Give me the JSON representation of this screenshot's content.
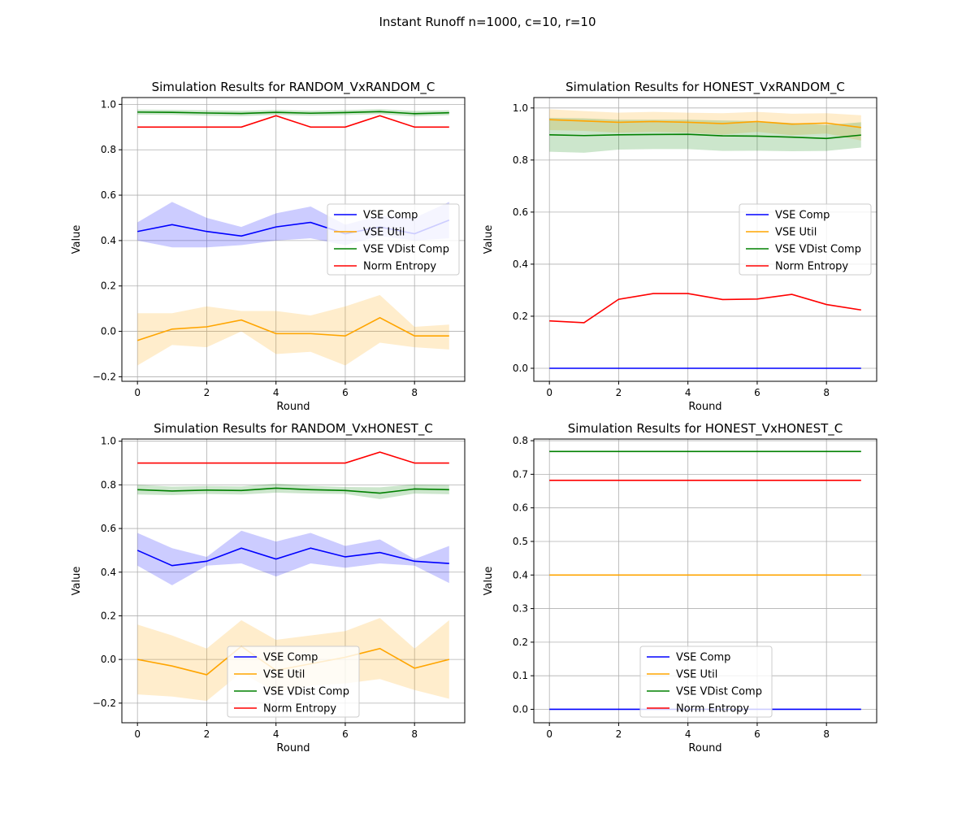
{
  "figure": {
    "suptitle": "Instant Runoff n=1000, c=10, r=10"
  },
  "legend_entries": [
    {
      "key": "comp",
      "label": "VSE Comp",
      "color": "#0000ff"
    },
    {
      "key": "util",
      "label": "VSE Util",
      "color": "#ffa500"
    },
    {
      "key": "vdist",
      "label": "VSE VDist Comp",
      "color": "#008000"
    },
    {
      "key": "entropy",
      "label": "Norm Entropy",
      "color": "#ff0000"
    }
  ],
  "chart_data": [
    {
      "type": "line",
      "title": "Simulation Results for RANDOM_VxRANDOM_C",
      "xlabel": "Round",
      "ylabel": "Value",
      "xlim": [
        -0.45,
        9.45
      ],
      "ylim": [
        -0.22,
        1.03
      ],
      "xticks": [
        0,
        2,
        4,
        6,
        8
      ],
      "yticks": [
        -0.2,
        0.0,
        0.2,
        0.4,
        0.6,
        0.8,
        1.0
      ],
      "ytick_labels": [
        "−0.2",
        "0.0",
        "0.2",
        "0.4",
        "0.6",
        "0.8",
        "1.0"
      ],
      "grid": true,
      "legend_position": "center-right",
      "x": [
        0,
        1,
        2,
        3,
        4,
        5,
        6,
        7,
        8,
        9
      ],
      "series": [
        {
          "key": "comp",
          "name": "VSE Comp",
          "color": "#0000ff",
          "values": [
            0.44,
            0.47,
            0.44,
            0.42,
            0.46,
            0.48,
            0.43,
            0.46,
            0.43,
            0.49
          ],
          "lower": [
            0.4,
            0.37,
            0.37,
            0.38,
            0.4,
            0.41,
            0.38,
            0.42,
            0.4,
            0.41
          ],
          "upper": [
            0.48,
            0.57,
            0.5,
            0.46,
            0.52,
            0.55,
            0.47,
            0.51,
            0.5,
            0.57
          ]
        },
        {
          "key": "util",
          "name": "VSE Util",
          "color": "#ffa500",
          "values": [
            -0.04,
            0.01,
            0.02,
            0.05,
            -0.01,
            -0.01,
            -0.02,
            0.06,
            -0.02,
            -0.02
          ],
          "lower": [
            -0.15,
            -0.06,
            -0.07,
            0.0,
            -0.1,
            -0.09,
            -0.15,
            -0.05,
            -0.07,
            -0.08
          ],
          "upper": [
            0.08,
            0.08,
            0.11,
            0.09,
            0.09,
            0.07,
            0.11,
            0.16,
            0.02,
            0.03
          ]
        },
        {
          "key": "vdist",
          "name": "VSE VDist Comp",
          "color": "#008000",
          "values": [
            0.966,
            0.965,
            0.962,
            0.96,
            0.965,
            0.961,
            0.964,
            0.968,
            0.959,
            0.963
          ],
          "lower": [
            0.955,
            0.954,
            0.95,
            0.948,
            0.954,
            0.95,
            0.953,
            0.957,
            0.947,
            0.952
          ],
          "upper": [
            0.977,
            0.976,
            0.974,
            0.972,
            0.976,
            0.972,
            0.975,
            0.979,
            0.971,
            0.974
          ]
        },
        {
          "key": "entropy",
          "name": "Norm Entropy",
          "color": "#ff0000",
          "values": [
            0.9,
            0.9,
            0.9,
            0.9,
            0.95,
            0.9,
            0.9,
            0.95,
            0.9,
            0.9
          ]
        }
      ]
    },
    {
      "type": "line",
      "title": "Simulation Results for HONEST_VxRANDOM_C",
      "xlabel": "Round",
      "ylabel": "Value",
      "xlim": [
        -0.45,
        9.45
      ],
      "ylim": [
        -0.05,
        1.04
      ],
      "xticks": [
        0,
        2,
        4,
        6,
        8
      ],
      "yticks": [
        0.0,
        0.2,
        0.4,
        0.6,
        0.8,
        1.0
      ],
      "ytick_labels": [
        "0.0",
        "0.2",
        "0.4",
        "0.6",
        "0.8",
        "1.0"
      ],
      "grid": true,
      "legend_position": "center-right",
      "x": [
        0,
        1,
        2,
        3,
        4,
        5,
        6,
        7,
        8,
        9
      ],
      "series": [
        {
          "key": "comp",
          "name": "VSE Comp",
          "color": "#0000ff",
          "values": [
            0,
            0,
            0,
            0,
            0,
            0,
            0,
            0,
            0,
            0
          ]
        },
        {
          "key": "util",
          "name": "VSE Util",
          "color": "#ffa500",
          "values": [
            0.955,
            0.95,
            0.945,
            0.948,
            0.945,
            0.94,
            0.948,
            0.938,
            0.942,
            0.925
          ],
          "lower": [
            0.915,
            0.912,
            0.905,
            0.908,
            0.905,
            0.898,
            0.908,
            0.895,
            0.902,
            0.875
          ],
          "upper": [
            0.995,
            0.988,
            0.982,
            0.985,
            0.982,
            0.98,
            0.985,
            0.978,
            0.98,
            0.972
          ]
        },
        {
          "key": "vdist",
          "name": "VSE VDist Comp",
          "color": "#008000",
          "values": [
            0.897,
            0.894,
            0.897,
            0.898,
            0.899,
            0.893,
            0.892,
            0.888,
            0.883,
            0.896
          ],
          "lower": [
            0.832,
            0.828,
            0.84,
            0.842,
            0.842,
            0.835,
            0.836,
            0.834,
            0.835,
            0.848
          ],
          "upper": [
            0.962,
            0.96,
            0.955,
            0.955,
            0.955,
            0.952,
            0.95,
            0.942,
            0.935,
            0.945
          ]
        },
        {
          "key": "entropy",
          "name": "Norm Entropy",
          "color": "#ff0000",
          "values": [
            0.182,
            0.175,
            0.265,
            0.287,
            0.287,
            0.264,
            0.266,
            0.284,
            0.245,
            0.224
          ]
        }
      ]
    },
    {
      "type": "line",
      "title": "Simulation Results for RANDOM_VxHONEST_C",
      "xlabel": "Round",
      "ylabel": "Value",
      "xlim": [
        -0.45,
        9.45
      ],
      "ylim": [
        -0.29,
        1.01
      ],
      "xticks": [
        0,
        2,
        4,
        6,
        8
      ],
      "yticks": [
        -0.2,
        0.0,
        0.2,
        0.4,
        0.6,
        0.8,
        1.0
      ],
      "ytick_labels": [
        "−0.2",
        "0.0",
        "0.2",
        "0.4",
        "0.6",
        "0.8",
        "1.0"
      ],
      "grid": true,
      "legend_position": "lower-center",
      "x": [
        0,
        1,
        2,
        3,
        4,
        5,
        6,
        7,
        8,
        9
      ],
      "series": [
        {
          "key": "comp",
          "name": "VSE Comp",
          "color": "#0000ff",
          "values": [
            0.5,
            0.43,
            0.45,
            0.51,
            0.46,
            0.51,
            0.47,
            0.49,
            0.45,
            0.44
          ],
          "lower": [
            0.43,
            0.34,
            0.43,
            0.44,
            0.38,
            0.44,
            0.42,
            0.44,
            0.43,
            0.35
          ],
          "upper": [
            0.58,
            0.51,
            0.47,
            0.59,
            0.54,
            0.58,
            0.52,
            0.55,
            0.46,
            0.52
          ]
        },
        {
          "key": "util",
          "name": "VSE Util",
          "color": "#ffa500",
          "values": [
            0.0,
            -0.03,
            -0.07,
            0.06,
            -0.05,
            -0.02,
            0.01,
            0.05,
            -0.04,
            0.0
          ],
          "lower": [
            -0.16,
            -0.17,
            -0.19,
            -0.06,
            -0.15,
            -0.12,
            -0.11,
            -0.09,
            -0.14,
            -0.18
          ],
          "upper": [
            0.16,
            0.11,
            0.05,
            0.18,
            0.09,
            0.11,
            0.13,
            0.19,
            0.05,
            0.18
          ]
        },
        {
          "key": "vdist",
          "name": "VSE VDist Comp",
          "color": "#008000",
          "values": [
            0.778,
            0.772,
            0.776,
            0.774,
            0.785,
            0.778,
            0.774,
            0.762,
            0.781,
            0.778
          ],
          "lower": [
            0.756,
            0.753,
            0.758,
            0.756,
            0.764,
            0.76,
            0.758,
            0.735,
            0.76,
            0.757
          ],
          "upper": [
            0.8,
            0.792,
            0.795,
            0.793,
            0.806,
            0.796,
            0.79,
            0.789,
            0.802,
            0.799
          ]
        },
        {
          "key": "entropy",
          "name": "Norm Entropy",
          "color": "#ff0000",
          "values": [
            0.9,
            0.9,
            0.9,
            0.9,
            0.9,
            0.9,
            0.9,
            0.95,
            0.9,
            0.9
          ]
        }
      ]
    },
    {
      "type": "line",
      "title": "Simulation Results for HONEST_VxHONEST_C",
      "xlabel": "Round",
      "ylabel": "Value",
      "xlim": [
        -0.45,
        9.45
      ],
      "ylim": [
        -0.04,
        0.805
      ],
      "xticks": [
        0,
        2,
        4,
        6,
        8
      ],
      "yticks": [
        0.0,
        0.1,
        0.2,
        0.3,
        0.4,
        0.5,
        0.6,
        0.7,
        0.8
      ],
      "ytick_labels": [
        "0.0",
        "0.1",
        "0.2",
        "0.3",
        "0.4",
        "0.5",
        "0.6",
        "0.7",
        "0.8"
      ],
      "grid": true,
      "legend_position": "lower-center",
      "x": [
        0,
        1,
        2,
        3,
        4,
        5,
        6,
        7,
        8,
        9
      ],
      "series": [
        {
          "key": "comp",
          "name": "VSE Comp",
          "color": "#0000ff",
          "values": [
            0,
            0,
            0,
            0,
            0,
            0,
            0,
            0,
            0,
            0
          ]
        },
        {
          "key": "util",
          "name": "VSE Util",
          "color": "#ffa500",
          "values": [
            0.4,
            0.4,
            0.4,
            0.4,
            0.4,
            0.4,
            0.4,
            0.4,
            0.4,
            0.4
          ]
        },
        {
          "key": "vdist",
          "name": "VSE VDist Comp",
          "color": "#008000",
          "values": [
            0.768,
            0.768,
            0.768,
            0.768,
            0.768,
            0.768,
            0.768,
            0.768,
            0.768,
            0.768
          ]
        },
        {
          "key": "entropy",
          "name": "Norm Entropy",
          "color": "#ff0000",
          "values": [
            0.682,
            0.682,
            0.682,
            0.682,
            0.682,
            0.682,
            0.682,
            0.682,
            0.682,
            0.682
          ]
        }
      ]
    }
  ]
}
